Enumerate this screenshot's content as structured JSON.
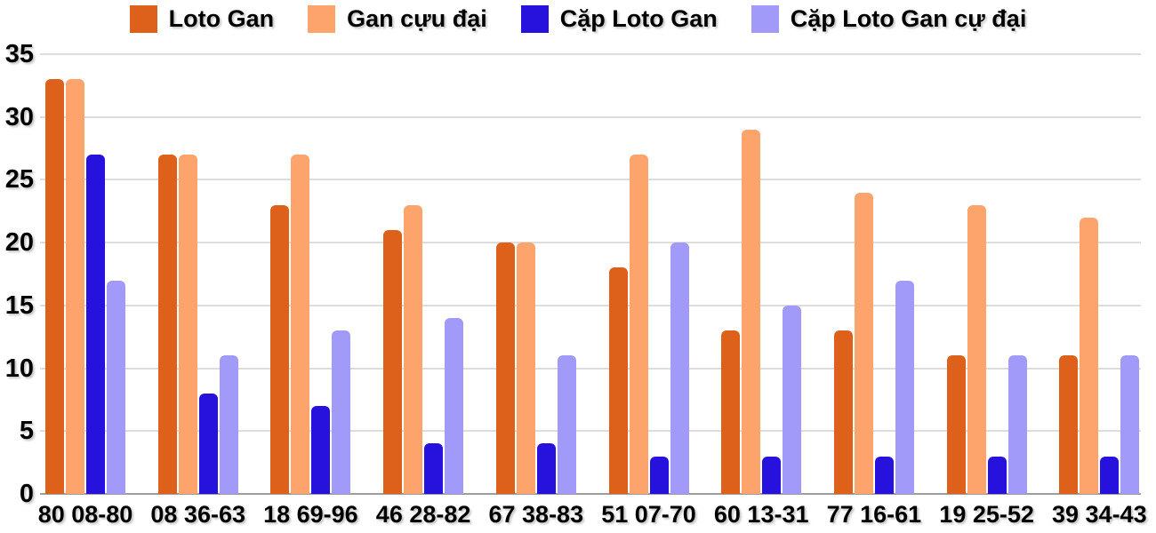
{
  "chart_data": {
    "type": "bar",
    "title": "",
    "xlabel": "",
    "ylabel": "",
    "categories": [
      "80 08-80",
      "08 36-63",
      "18 69-96",
      "46 28-82",
      "67 38-83",
      "51 07-70",
      "60 13-31",
      "77 16-61",
      "19 25-52",
      "39 34-43"
    ],
    "series": [
      {
        "name": "Loto Gan",
        "color": "#DD611A",
        "values": [
          33,
          27,
          23,
          21,
          20,
          18,
          13,
          13,
          11,
          11
        ]
      },
      {
        "name": "Gan cựu đại",
        "color": "#FDA46C",
        "values": [
          33,
          27,
          27,
          23,
          20,
          27,
          29,
          24,
          23,
          22
        ]
      },
      {
        "name": "Cặp Loto Gan",
        "color": "#2612DC",
        "values": [
          27,
          8,
          7,
          4,
          4,
          3,
          3,
          3,
          3,
          3
        ]
      },
      {
        "name": "Cặp Loto Gan cự đại",
        "color": "#A29AF8",
        "values": [
          17,
          11,
          13,
          14,
          11,
          20,
          15,
          17,
          11,
          11
        ]
      }
    ],
    "ylim": [
      0,
      35
    ],
    "yticks": [
      0,
      5,
      10,
      15,
      20,
      25,
      30,
      35
    ],
    "grid": true,
    "legend_position": "top"
  },
  "colors": {
    "background": "#FFFFFF",
    "gridline": "#DDDDDD",
    "axis_line": "#9E9E9E",
    "text": "#000000"
  }
}
